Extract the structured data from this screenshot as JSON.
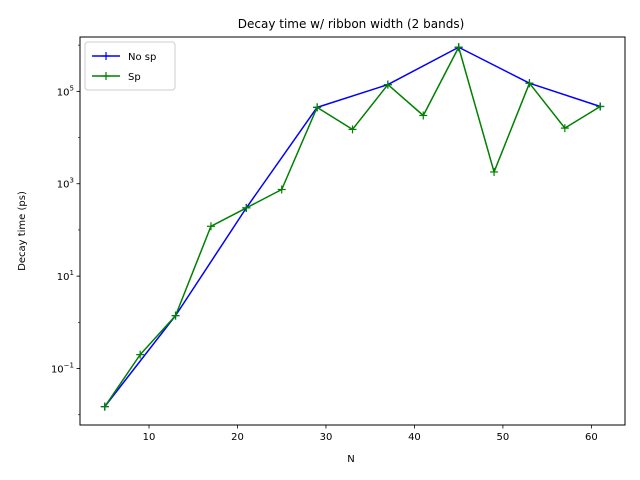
{
  "chart_data": {
    "type": "line",
    "title": "Decay time w/ ribbon width (2 bands)",
    "xlabel": "N",
    "ylabel": "Decay time (ps)",
    "xscale": "linear",
    "yscale": "log",
    "xlim": [
      2.2,
      63.8
    ],
    "ylim": [
      0.006,
      1500000
    ],
    "xticks": [
      10,
      20,
      30,
      40,
      50,
      60
    ],
    "yticks": [
      {
        "value": 0.1,
        "base": "10",
        "exp": "−1"
      },
      {
        "value": 10,
        "base": "10",
        "exp": "1"
      },
      {
        "value": 1000,
        "base": "10",
        "exp": "3"
      },
      {
        "value": 100000,
        "base": "10",
        "exp": "5"
      }
    ],
    "grid": false,
    "legend_position": "top-left",
    "series": [
      {
        "name": "No sp",
        "color": "#0000ff",
        "marker": "plus",
        "x": [
          5,
          13,
          21,
          29,
          37,
          45,
          53,
          61
        ],
        "y": [
          0.015,
          1.4,
          300,
          45000,
          140000,
          900000,
          150000,
          47000
        ]
      },
      {
        "name": "Sp",
        "color": "#008000",
        "marker": "plus",
        "x": [
          5,
          9,
          13,
          17,
          21,
          25,
          29,
          33,
          37,
          41,
          45,
          49,
          53,
          57,
          61
        ],
        "y": [
          0.015,
          0.2,
          1.4,
          120,
          300,
          750,
          45000,
          15000,
          140000,
          30000,
          900000,
          1800,
          150000,
          16000,
          47000
        ]
      }
    ]
  }
}
